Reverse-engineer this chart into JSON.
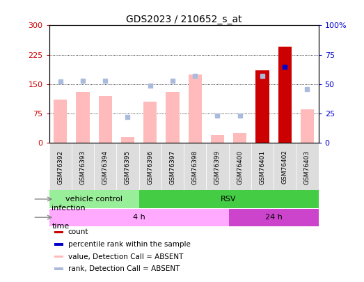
{
  "title": "GDS2023 / 210652_s_at",
  "samples": [
    "GSM76392",
    "GSM76393",
    "GSM76394",
    "GSM76395",
    "GSM76396",
    "GSM76397",
    "GSM76398",
    "GSM76399",
    "GSM76400",
    "GSM76401",
    "GSM76402",
    "GSM76403"
  ],
  "bar_values": [
    110,
    130,
    120,
    15,
    105,
    130,
    175,
    20,
    25,
    185,
    245,
    85
  ],
  "bar_colors": [
    "#ffbbbb",
    "#ffbbbb",
    "#ffbbbb",
    "#ffbbbb",
    "#ffbbbb",
    "#ffbbbb",
    "#ffbbbb",
    "#ffbbbb",
    "#ffbbbb",
    "#cc0000",
    "#cc0000",
    "#ffbbbb"
  ],
  "rank_dots": [
    52,
    53,
    53,
    22,
    49,
    53,
    57,
    23,
    23,
    57,
    65,
    46
  ],
  "rank_dot_colors": [
    "#aabbdd",
    "#aabbdd",
    "#aabbdd",
    "#aabbdd",
    "#aabbdd",
    "#aabbdd",
    "#aabbdd",
    "#aabbdd",
    "#aabbdd",
    "#aabbdd",
    "#0000cc",
    "#aabbdd"
  ],
  "ylim_left": [
    0,
    300
  ],
  "ylim_right": [
    0,
    100
  ],
  "yticks_left": [
    0,
    75,
    150,
    225,
    300
  ],
  "yticks_right": [
    0,
    25,
    50,
    75,
    100
  ],
  "yticklabels_left": [
    "0",
    "75",
    "150",
    "225",
    "300"
  ],
  "yticklabels_right": [
    "0",
    "25",
    "50",
    "75",
    "100%"
  ],
  "infection_groups": [
    {
      "label": "vehicle control",
      "start": 0,
      "end": 3,
      "color": "#99ee99"
    },
    {
      "label": "RSV",
      "start": 4,
      "end": 11,
      "color": "#44cc44"
    }
  ],
  "time_groups": [
    {
      "label": "4 h",
      "start": 0,
      "end": 7,
      "color": "#ffaaff"
    },
    {
      "label": "24 h",
      "start": 8,
      "end": 11,
      "color": "#cc44cc"
    }
  ],
  "infection_label": "infection",
  "time_label": "time",
  "background_color": "#ffffff",
  "plot_bg": "#ffffff",
  "left_axis_color": "#cc0000",
  "right_axis_color": "#0000cc",
  "cell_bg": "#dddddd",
  "legend_items": [
    {
      "color": "#cc0000",
      "label": "count"
    },
    {
      "color": "#0000cc",
      "label": "percentile rank within the sample"
    },
    {
      "color": "#ffbbbb",
      "label": "value, Detection Call = ABSENT"
    },
    {
      "color": "#aabbdd",
      "label": "rank, Detection Call = ABSENT"
    }
  ]
}
